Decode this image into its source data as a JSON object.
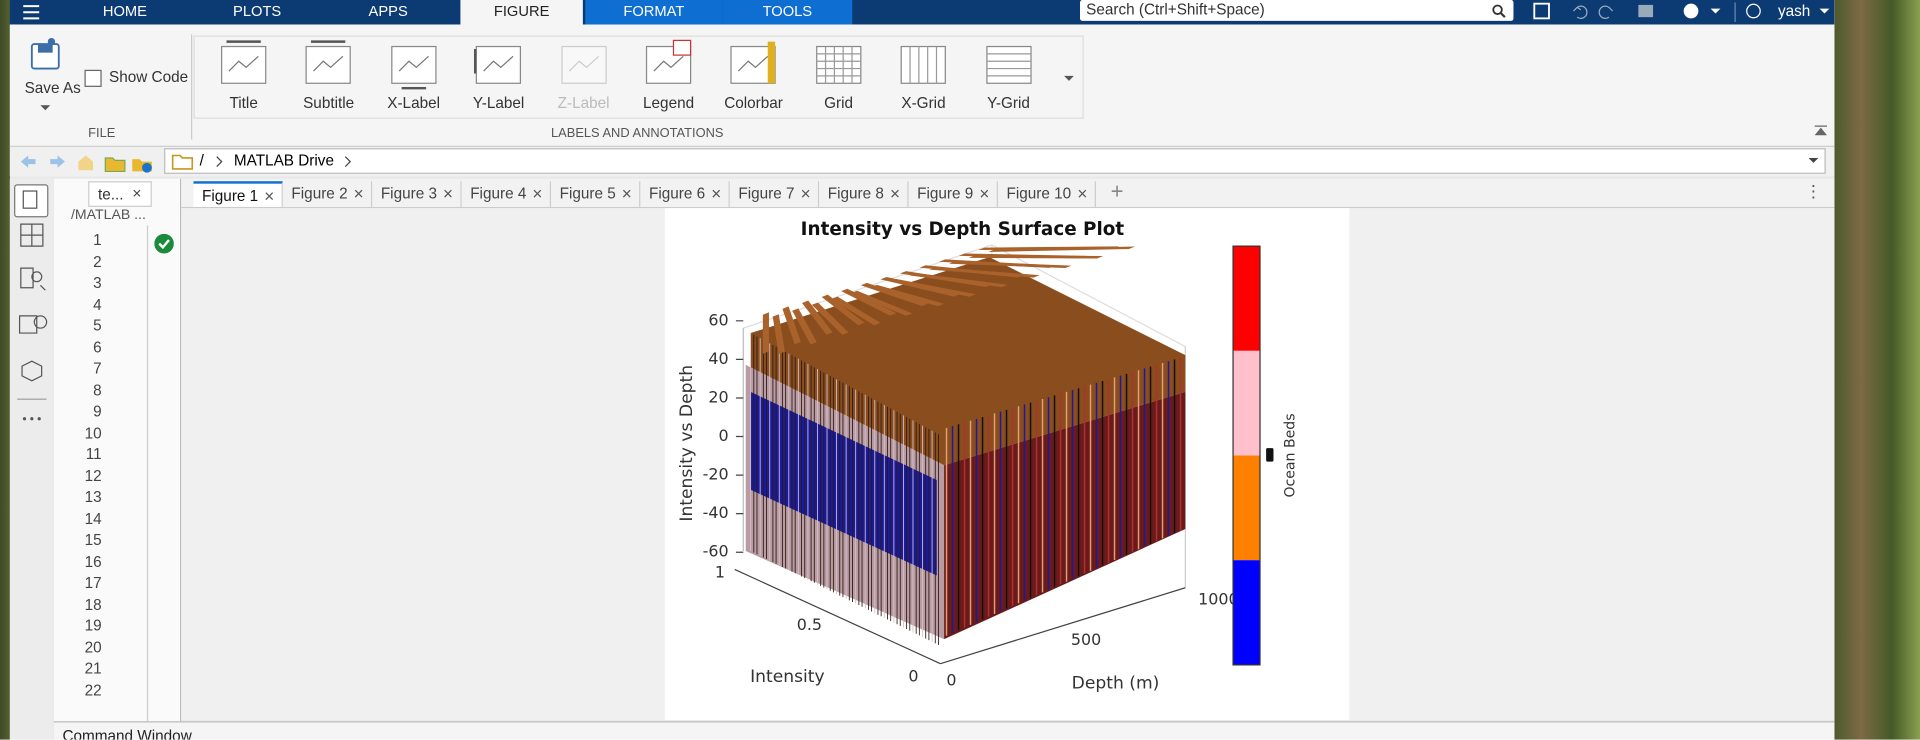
{
  "menu": {
    "tabs": [
      "HOME",
      "PLOTS",
      "APPS",
      "FIGURE",
      "FORMAT",
      "TOOLS"
    ],
    "search_placeholder": "Search (Ctrl+Shift+Space)",
    "user": "yash"
  },
  "toolstrip": {
    "file": {
      "save_as": "Save As",
      "show_code": "Show Code",
      "group": "FILE"
    },
    "labels_group": {
      "buttons": [
        "Title",
        "Subtitle",
        "X-Label",
        "Y-Label",
        "Z-Label",
        "Legend",
        "Colorbar",
        "Grid",
        "X-Grid",
        "Y-Grid"
      ],
      "group": "LABELS AND ANNOTATIONS"
    }
  },
  "address": {
    "root": "/",
    "folder": "MATLAB Drive"
  },
  "editor": {
    "tab": "te...",
    "path": "/MATLAB ...",
    "line_numbers": [
      1,
      2,
      3,
      4,
      5,
      6,
      7,
      8,
      9,
      10,
      11,
      12,
      13,
      14,
      15,
      16,
      17,
      18,
      19,
      20,
      21,
      22
    ]
  },
  "figure_tabs": [
    "Figure 1",
    "Figure 2",
    "Figure 3",
    "Figure 4",
    "Figure 5",
    "Figure 6",
    "Figure 7",
    "Figure 8",
    "Figure 9",
    "Figure 10"
  ],
  "figure": {
    "title": "Intensity vs Depth Surface Plot",
    "zlabel": "Intensity vs Depth",
    "ylabel": "Intensity",
    "xlabel": "Depth (m)",
    "zticks": [
      60,
      40,
      20,
      0,
      -20,
      -40,
      -60
    ],
    "yticks": [
      1,
      0.5,
      0
    ],
    "xticks": [
      0,
      500,
      1000
    ],
    "colorbar_label": "Ocean Beds"
  },
  "command_window": "Command Window"
}
